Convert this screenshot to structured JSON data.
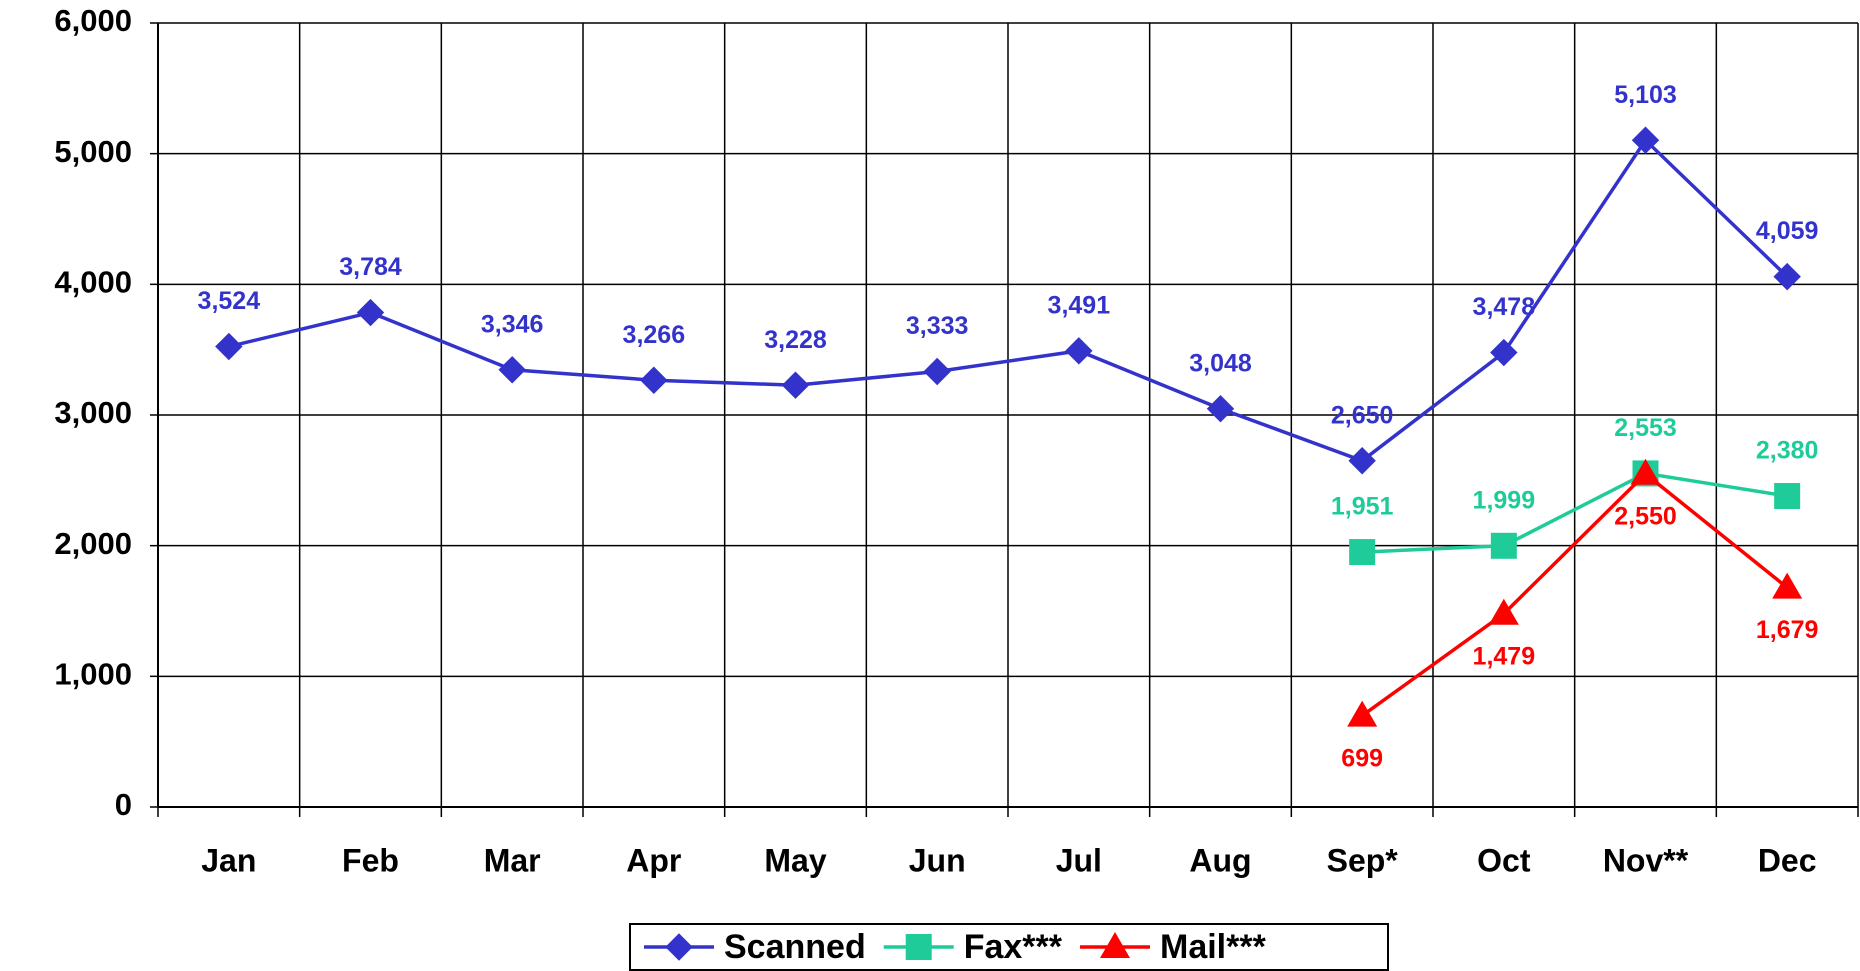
{
  "chart_data": {
    "type": "line",
    "categories": [
      "Jan",
      "Feb",
      "Mar",
      "Apr",
      "May",
      "Jun",
      "Jul",
      "Aug",
      "Sep*",
      "Oct",
      "Nov**",
      "Dec"
    ],
    "series": [
      {
        "name": "Scanned",
        "color": "#3333cc",
        "marker": "diamond",
        "values": [
          3524,
          3784,
          3346,
          3266,
          3228,
          3333,
          3491,
          3048,
          2650,
          3478,
          5103,
          4059
        ],
        "value_labels": [
          "3,524",
          "3,784",
          "3,346",
          "3,266",
          "3,228",
          "3,333",
          "3,491",
          "3,048",
          "2,650",
          "3,478",
          "5,103",
          "4,059"
        ]
      },
      {
        "name": "Fax***",
        "color": "#1fcc99",
        "marker": "square",
        "values": [
          null,
          null,
          null,
          null,
          null,
          null,
          null,
          null,
          1951,
          1999,
          2553,
          2380
        ],
        "value_labels": [
          null,
          null,
          null,
          null,
          null,
          null,
          null,
          null,
          "1,951",
          "1,999",
          "2,553",
          "2,380"
        ]
      },
      {
        "name": "Mail***",
        "color": "#ff0000",
        "marker": "triangle",
        "values": [
          null,
          null,
          null,
          null,
          null,
          null,
          null,
          null,
          699,
          1479,
          2550,
          1679
        ],
        "value_labels": [
          null,
          null,
          null,
          null,
          null,
          null,
          null,
          null,
          "699",
          "1,479",
          "2,550",
          "1,679"
        ]
      }
    ],
    "ylim": [
      0,
      6000
    ],
    "yticks": [
      0,
      {
        "value": 1000,
        "label": "1,000"
      },
      {
        "value": 2000,
        "label": "2,000"
      },
      {
        "value": 3000,
        "label": "3,000"
      },
      {
        "value": 4000,
        "label": "4,000"
      },
      {
        "value": 5000,
        "label": "5,000"
      },
      {
        "value": 6000,
        "label": "6,000"
      }
    ],
    "grid": true,
    "legend": "bottom"
  }
}
